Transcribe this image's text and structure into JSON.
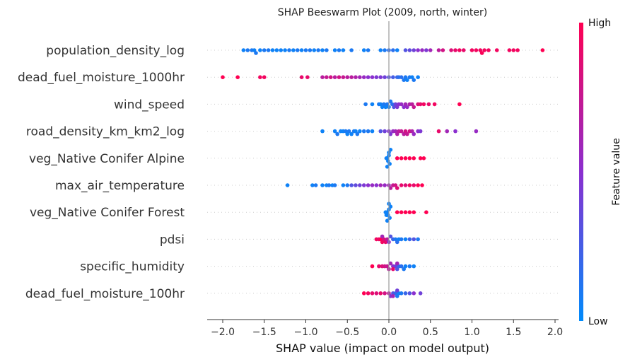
{
  "chart_data": {
    "type": "scatter",
    "subtype": "shap-beeswarm",
    "title": "SHAP Beeswarm Plot (2009, north, winter)",
    "xlabel": "SHAP value (impact on model output)",
    "xlim": [
      -2.2,
      2.05
    ],
    "xticks": [
      -2.0,
      -1.5,
      -1.0,
      -0.5,
      0.0,
      0.5,
      1.0,
      1.5,
      2.0
    ],
    "xtick_labels": [
      "−2.0",
      "−1.5",
      "−1.0",
      "−0.5",
      "0.0",
      "0.5",
      "1.0",
      "1.5",
      "2.0"
    ],
    "colorbar": {
      "label": "Feature value",
      "high_label": "High",
      "low_label": "Low",
      "low_color": "#008bfb",
      "mid_color": "#8b2fcf",
      "high_color": "#ff0052"
    },
    "grid": false,
    "features": [
      {
        "name": "population_density_log",
        "points": [
          [
            -1.75,
            0.05
          ],
          [
            -1.7,
            0.1
          ],
          [
            -1.65,
            0.1
          ],
          [
            -1.62,
            0.05
          ],
          [
            -1.6,
            0.1
          ],
          [
            -1.55,
            0.05
          ],
          [
            -1.5,
            0.1
          ],
          [
            -1.45,
            0.1
          ],
          [
            -1.4,
            0.05
          ],
          [
            -1.35,
            0.05
          ],
          [
            -1.3,
            0.05
          ],
          [
            -1.25,
            0.05
          ],
          [
            -1.2,
            0.1
          ],
          [
            -1.15,
            0.05
          ],
          [
            -1.1,
            0.1
          ],
          [
            -1.05,
            0.05
          ],
          [
            -1.0,
            0.1
          ],
          [
            -0.95,
            0.1
          ],
          [
            -0.9,
            0.05
          ],
          [
            -0.85,
            0.1
          ],
          [
            -0.8,
            0.05
          ],
          [
            -0.75,
            0.1
          ],
          [
            -0.65,
            0.05
          ],
          [
            -0.6,
            0.1
          ],
          [
            -0.55,
            0.05
          ],
          [
            -0.45,
            0.1
          ],
          [
            -0.3,
            0.05
          ],
          [
            -0.25,
            0.1
          ],
          [
            -0.1,
            0.05
          ],
          [
            -0.05,
            0.1
          ],
          [
            0.0,
            0.15
          ],
          [
            0.05,
            0.15
          ],
          [
            0.1,
            0.05
          ],
          [
            0.2,
            0.3
          ],
          [
            0.25,
            0.35
          ],
          [
            0.3,
            0.4
          ],
          [
            0.35,
            0.5
          ],
          [
            0.4,
            0.55
          ],
          [
            0.45,
            0.45
          ],
          [
            0.5,
            0.6
          ],
          [
            0.6,
            0.7
          ],
          [
            0.65,
            0.8
          ],
          [
            0.75,
            0.85
          ],
          [
            0.8,
            0.9
          ],
          [
            0.85,
            0.95
          ],
          [
            0.9,
            0.9
          ],
          [
            1.0,
            0.95
          ],
          [
            1.05,
            0.95
          ],
          [
            1.1,
            0.95
          ],
          [
            1.12,
            0.98
          ],
          [
            1.15,
            0.95
          ],
          [
            1.2,
            0.95
          ],
          [
            1.3,
            0.95
          ],
          [
            1.45,
            0.95
          ],
          [
            1.5,
            0.95
          ],
          [
            1.55,
            0.95
          ],
          [
            1.85,
            1.0
          ]
        ]
      },
      {
        "name": "dead_fuel_moisture_1000hr",
        "points": [
          [
            -2.0,
            1.0
          ],
          [
            -1.82,
            1.0
          ],
          [
            -1.55,
            0.95
          ],
          [
            -1.5,
            0.95
          ],
          [
            -1.05,
            0.9
          ],
          [
            -0.98,
            0.9
          ],
          [
            -0.8,
            0.7
          ],
          [
            -0.75,
            0.75
          ],
          [
            -0.7,
            0.8
          ],
          [
            -0.65,
            0.7
          ],
          [
            -0.6,
            0.8
          ],
          [
            -0.55,
            0.75
          ],
          [
            -0.5,
            0.7
          ],
          [
            -0.45,
            0.7
          ],
          [
            -0.4,
            0.65
          ],
          [
            -0.35,
            0.6
          ],
          [
            -0.3,
            0.55
          ],
          [
            -0.25,
            0.5
          ],
          [
            -0.2,
            0.5
          ],
          [
            -0.15,
            0.45
          ],
          [
            -0.1,
            0.45
          ],
          [
            -0.05,
            0.4
          ],
          [
            0.0,
            0.3
          ],
          [
            0.05,
            0.25
          ],
          [
            0.1,
            0.2
          ],
          [
            0.12,
            0.15
          ],
          [
            0.15,
            0.15
          ],
          [
            0.18,
            0.1
          ],
          [
            0.2,
            0.1
          ],
          [
            0.22,
            0.05
          ],
          [
            0.25,
            0.1
          ],
          [
            0.28,
            0.05
          ],
          [
            0.3,
            0.1
          ],
          [
            0.35,
            0.05
          ]
        ]
      },
      {
        "name": "wind_speed",
        "points": [
          [
            -0.28,
            0.1
          ],
          [
            -0.2,
            0.05
          ],
          [
            -0.12,
            0.1
          ],
          [
            -0.1,
            0.05
          ],
          [
            -0.08,
            0.05
          ],
          [
            -0.06,
            0.1
          ],
          [
            -0.04,
            0.05
          ],
          [
            -0.02,
            0.1
          ],
          [
            0.0,
            0.05
          ],
          [
            0.02,
            0.1
          ],
          [
            0.04,
            0.15
          ],
          [
            0.06,
            0.3
          ],
          [
            0.08,
            0.4
          ],
          [
            0.1,
            0.45
          ],
          [
            0.12,
            0.5
          ],
          [
            0.15,
            0.55
          ],
          [
            0.18,
            0.5
          ],
          [
            0.2,
            0.6
          ],
          [
            0.22,
            0.55
          ],
          [
            0.25,
            0.65
          ],
          [
            0.28,
            0.7
          ],
          [
            0.3,
            0.75
          ],
          [
            0.35,
            0.85
          ],
          [
            0.38,
            0.9
          ],
          [
            0.42,
            0.95
          ],
          [
            0.48,
            0.9
          ],
          [
            0.55,
            0.95
          ],
          [
            0.85,
            1.0
          ]
        ]
      },
      {
        "name": "road_density_km_km2_log",
        "points": [
          [
            -0.8,
            0.05
          ],
          [
            -0.65,
            0.05
          ],
          [
            -0.62,
            0.1
          ],
          [
            -0.58,
            0.05
          ],
          [
            -0.55,
            0.05
          ],
          [
            -0.52,
            0.1
          ],
          [
            -0.5,
            0.05
          ],
          [
            -0.48,
            0.1
          ],
          [
            -0.45,
            0.05
          ],
          [
            -0.42,
            0.1
          ],
          [
            -0.4,
            0.05
          ],
          [
            -0.38,
            0.1
          ],
          [
            -0.35,
            0.05
          ],
          [
            -0.3,
            0.1
          ],
          [
            -0.25,
            0.1
          ],
          [
            -0.2,
            0.05
          ],
          [
            -0.1,
            0.3
          ],
          [
            -0.05,
            0.4
          ],
          [
            0.0,
            0.5
          ],
          [
            0.02,
            0.45
          ],
          [
            0.05,
            0.55
          ],
          [
            0.08,
            0.6
          ],
          [
            0.1,
            0.65
          ],
          [
            0.12,
            0.7
          ],
          [
            0.15,
            0.75
          ],
          [
            0.18,
            0.7
          ],
          [
            0.2,
            0.8
          ],
          [
            0.22,
            0.75
          ],
          [
            0.25,
            0.8
          ],
          [
            0.28,
            0.65
          ],
          [
            0.3,
            0.55
          ],
          [
            0.35,
            0.5
          ],
          [
            0.38,
            0.45
          ],
          [
            0.6,
            0.9
          ],
          [
            0.7,
            0.6
          ],
          [
            0.8,
            0.5
          ],
          [
            1.05,
            0.55
          ]
        ]
      },
      {
        "name": "veg_Native Conifer Alpine",
        "points": [
          [
            -0.03,
            0.05
          ],
          [
            -0.02,
            0.05
          ],
          [
            -0.01,
            0.05
          ],
          [
            0.0,
            0.05
          ],
          [
            0.01,
            0.05
          ],
          [
            0.0,
            0.05
          ],
          [
            -0.02,
            0.05
          ],
          [
            0.02,
            0.05
          ],
          [
            0.1,
            1.0
          ],
          [
            0.15,
            1.0
          ],
          [
            0.2,
            1.0
          ],
          [
            0.25,
            1.0
          ],
          [
            0.3,
            1.0
          ],
          [
            0.38,
            1.0
          ],
          [
            0.42,
            1.0
          ]
        ]
      },
      {
        "name": "max_air_temperature",
        "points": [
          [
            -1.22,
            0.05
          ],
          [
            -0.92,
            0.05
          ],
          [
            -0.88,
            0.1
          ],
          [
            -0.8,
            0.05
          ],
          [
            -0.75,
            0.05
          ],
          [
            -0.72,
            0.1
          ],
          [
            -0.68,
            0.05
          ],
          [
            -0.65,
            0.1
          ],
          [
            -0.55,
            0.05
          ],
          [
            -0.5,
            0.1
          ],
          [
            -0.45,
            0.3
          ],
          [
            -0.4,
            0.35
          ],
          [
            -0.35,
            0.4
          ],
          [
            -0.3,
            0.45
          ],
          [
            -0.25,
            0.5
          ],
          [
            -0.2,
            0.55
          ],
          [
            -0.15,
            0.5
          ],
          [
            -0.1,
            0.6
          ],
          [
            -0.05,
            0.55
          ],
          [
            0.0,
            0.6
          ],
          [
            0.02,
            0.7
          ],
          [
            0.05,
            0.75
          ],
          [
            0.08,
            0.8
          ],
          [
            0.1,
            0.85
          ],
          [
            0.15,
            0.9
          ],
          [
            0.2,
            0.85
          ],
          [
            0.25,
            0.95
          ],
          [
            0.3,
            0.9
          ],
          [
            0.35,
            1.0
          ],
          [
            0.4,
            1.0
          ]
        ]
      },
      {
        "name": "veg_Native Conifer Forest",
        "points": [
          [
            -0.04,
            0.05
          ],
          [
            -0.03,
            0.05
          ],
          [
            -0.02,
            0.05
          ],
          [
            -0.01,
            0.05
          ],
          [
            0.0,
            0.05
          ],
          [
            0.01,
            0.05
          ],
          [
            0.02,
            0.05
          ],
          [
            -0.02,
            0.05
          ],
          [
            0.0,
            0.05
          ],
          [
            0.1,
            1.0
          ],
          [
            0.15,
            1.0
          ],
          [
            0.2,
            1.0
          ],
          [
            0.25,
            1.0
          ],
          [
            0.3,
            1.0
          ],
          [
            0.45,
            1.0
          ]
        ]
      },
      {
        "name": "pdsi",
        "points": [
          [
            -0.15,
            0.95
          ],
          [
            -0.12,
            0.9
          ],
          [
            -0.1,
            1.0
          ],
          [
            -0.08,
            0.95
          ],
          [
            -0.06,
            0.85
          ],
          [
            -0.04,
            0.9
          ],
          [
            -0.02,
            0.7
          ],
          [
            0.0,
            0.5
          ],
          [
            0.02,
            0.3
          ],
          [
            0.05,
            0.2
          ],
          [
            0.08,
            0.1
          ],
          [
            0.1,
            0.15
          ],
          [
            0.12,
            0.05
          ],
          [
            0.15,
            0.1
          ],
          [
            0.2,
            0.05
          ],
          [
            0.25,
            0.2
          ],
          [
            0.3,
            0.3
          ],
          [
            0.35,
            0.1
          ],
          [
            -0.08,
            0.6
          ]
        ]
      },
      {
        "name": "specific_humidity",
        "points": [
          [
            -0.2,
            1.0
          ],
          [
            -0.12,
            0.9
          ],
          [
            -0.08,
            0.85
          ],
          [
            -0.05,
            0.8
          ],
          [
            -0.02,
            0.75
          ],
          [
            0.0,
            0.7
          ],
          [
            0.02,
            0.6
          ],
          [
            0.05,
            0.5
          ],
          [
            0.08,
            0.4
          ],
          [
            0.1,
            0.3
          ],
          [
            0.12,
            0.2
          ],
          [
            0.15,
            0.15
          ],
          [
            0.18,
            0.1
          ],
          [
            0.2,
            0.05
          ],
          [
            0.25,
            0.1
          ],
          [
            0.3,
            0.05
          ],
          [
            0.1,
            0.6
          ],
          [
            0.05,
            0.9
          ]
        ]
      },
      {
        "name": "dead_fuel_moisture_100hr",
        "points": [
          [
            -0.3,
            1.0
          ],
          [
            -0.25,
            0.95
          ],
          [
            -0.2,
            0.9
          ],
          [
            -0.15,
            0.85
          ],
          [
            -0.1,
            0.9
          ],
          [
            -0.05,
            0.8
          ],
          [
            0.0,
            0.7
          ],
          [
            0.02,
            0.5
          ],
          [
            0.05,
            0.3
          ],
          [
            0.08,
            0.2
          ],
          [
            0.1,
            0.1
          ],
          [
            0.12,
            0.05
          ],
          [
            0.15,
            0.1
          ],
          [
            0.2,
            0.2
          ],
          [
            0.25,
            0.3
          ],
          [
            0.3,
            0.5
          ],
          [
            0.38,
            0.4
          ],
          [
            0.05,
            0.6
          ],
          [
            0.1,
            0.4
          ]
        ]
      }
    ]
  }
}
